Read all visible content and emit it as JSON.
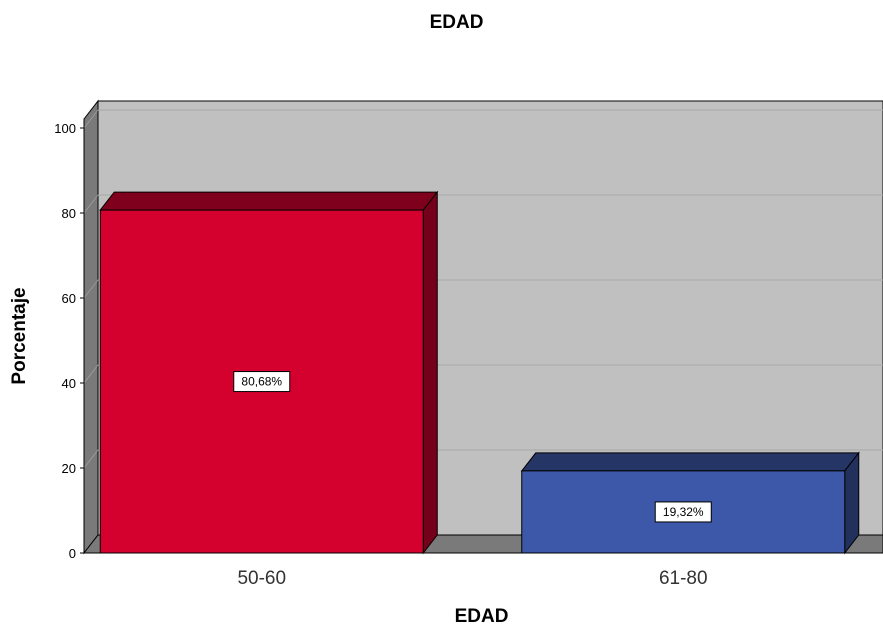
{
  "chart_data": {
    "type": "bar",
    "title": "EDAD",
    "xlabel": "EDAD",
    "ylabel": "Porcentaje",
    "categories": [
      "50-60",
      "61-80"
    ],
    "values": [
      80.68,
      19.32
    ],
    "data_labels": [
      "80,68%",
      "19,32%"
    ],
    "ylim": [
      0,
      100
    ],
    "yticks": [
      "0",
      "20",
      "40",
      "60",
      "80",
      "100"
    ],
    "grid": true,
    "legend": "none",
    "colors": [
      "#d4002e",
      "#3d58a8"
    ]
  }
}
